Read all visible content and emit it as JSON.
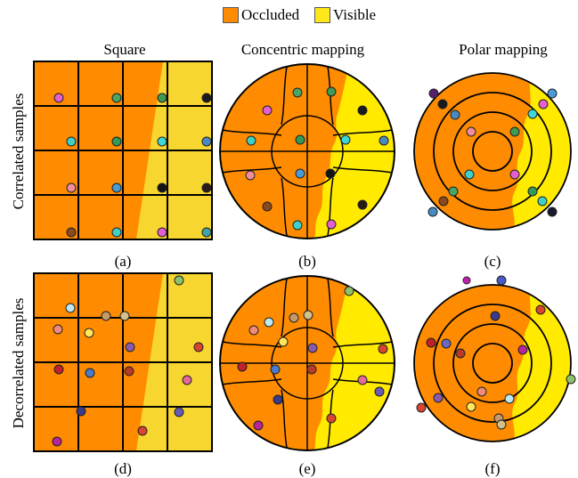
{
  "legend": [
    {
      "label": "Occluded",
      "color": "#ff8c00"
    },
    {
      "label": "Visible",
      "color": "#ffe81a"
    }
  ],
  "columns": [
    "Square",
    "Concentric mapping",
    "Polar mapping"
  ],
  "rows": [
    "Correlated samples",
    "Decorrelated samples"
  ],
  "panels": [
    "(a)",
    "(b)",
    "(c)",
    "(d)",
    "(e)",
    "(f)"
  ],
  "colors": {
    "occluded": "#ff8c00",
    "visible_square": "#f7d630",
    "visible_disk": "#ffea00",
    "line": "#000000"
  }
}
